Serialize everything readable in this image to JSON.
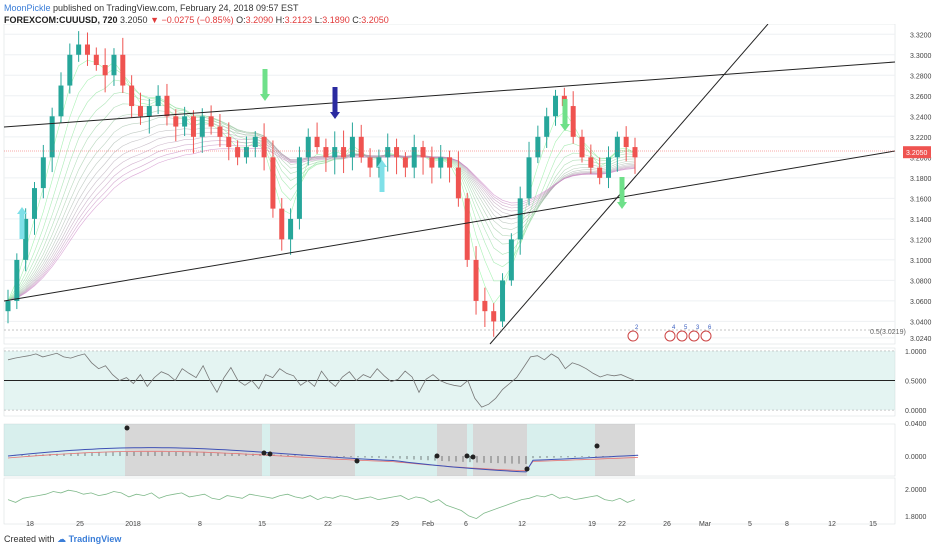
{
  "header": {
    "author": "MoonPickle",
    "published": "published on TradingView.com, February 24, 2018 09:57 EST",
    "symbol": "FOREXCOM:CUUUSD, 720",
    "last": "3.2050",
    "change": "−0.0275 (−0.85%)",
    "o_label": "O:",
    "o_val": "3.2090",
    "h_label": "H:",
    "h_val": "3.2123",
    "l_label": "L:",
    "l_val": "3.1890",
    "c_label": "C:",
    "c_val": "3.2050"
  },
  "footer": {
    "created_with": "Created with",
    "brand": "TradingView"
  },
  "colors": {
    "up": "#26a69a",
    "down": "#ef5350",
    "grid": "#eef0f3",
    "price_tag": "#ef5350",
    "band": "#b2dfdb",
    "gray_band": "#b0b0b0"
  },
  "chart_data": [
    {
      "type": "candlestick",
      "title": "",
      "price_axis_ticks": [
        "3.3200",
        "3.3000",
        "3.2800",
        "3.2600",
        "3.2400",
        "3.2200",
        "3.2000",
        "3.1800",
        "3.1600",
        "3.1400",
        "3.1200",
        "3.1000",
        "3.0800",
        "3.0600",
        "3.0400",
        "3.0240"
      ],
      "ylim": [
        3.018,
        3.33
      ],
      "current_price_label": "3.2050",
      "fib_label": "0.5(3.0219)",
      "x_axis_labels": [
        "18",
        "25",
        "2018",
        "8",
        "15",
        "22",
        "29",
        "Feb",
        "6",
        "12",
        "19",
        "22",
        "26",
        "Mar",
        "5",
        "8",
        "12",
        "15"
      ],
      "event_markers": [
        "2",
        "4",
        "5",
        "3",
        "6"
      ]
    },
    {
      "type": "line",
      "name": "oscillator",
      "ticks": [
        "1.0000",
        "0.5000",
        "0.0000"
      ],
      "ylim": [
        -0.1,
        1.05
      ],
      "values": [
        0.85,
        0.88,
        0.9,
        0.92,
        0.95,
        0.9,
        0.93,
        0.96,
        0.9,
        0.88,
        0.92,
        0.95,
        0.8,
        0.7,
        0.75,
        0.6,
        0.5,
        0.55,
        0.45,
        0.6,
        0.4,
        0.55,
        0.65,
        0.6,
        0.5,
        0.7,
        0.62,
        0.55,
        0.75,
        0.5,
        0.3,
        0.55,
        0.72,
        0.5,
        0.42,
        0.5,
        0.36,
        0.6,
        0.55,
        0.7,
        0.62,
        0.58,
        0.42,
        0.5,
        0.4,
        0.66,
        0.5,
        0.4,
        0.56,
        0.65,
        0.5,
        0.6,
        0.55,
        0.7,
        0.58,
        0.48,
        0.52,
        0.66,
        0.56,
        0.3,
        0.52,
        0.6,
        0.5,
        0.45,
        0.42,
        0.4,
        0.5,
        0.2,
        0.05,
        0.1,
        0.2,
        0.35,
        0.45,
        0.55,
        0.72,
        0.9,
        0.92,
        0.85,
        0.95,
        0.88,
        0.7,
        0.8,
        0.76,
        0.7,
        0.62,
        0.56,
        0.6,
        0.58,
        0.6,
        0.55,
        0.5
      ]
    },
    {
      "type": "line",
      "name": "macd",
      "ticks": [
        "0.0000"
      ],
      "top_tick": "0.0400"
    },
    {
      "type": "line",
      "name": "lower",
      "ticks": [
        "2.0000",
        "1.8000"
      ],
      "ylim": [
        1.74,
        2.08
      ],
      "values": [
        1.92,
        1.9,
        1.93,
        1.94,
        1.95,
        1.96,
        1.98,
        1.97,
        1.99,
        1.98,
        1.96,
        1.97,
        1.95,
        1.96,
        1.98,
        1.97,
        1.94,
        1.96,
        1.95,
        1.97,
        1.93,
        1.95,
        1.96,
        1.97,
        1.94,
        1.95,
        1.96,
        1.93,
        1.92,
        1.95,
        1.94,
        1.93,
        1.96,
        1.95,
        1.94,
        1.93,
        1.95,
        1.96,
        1.94,
        1.93,
        1.95,
        1.92,
        1.94,
        1.93,
        1.95,
        1.94,
        1.92,
        1.93,
        1.94,
        1.92,
        1.93,
        1.94,
        1.95,
        1.92,
        1.94,
        1.93,
        1.9,
        1.92,
        1.88,
        1.86,
        1.84,
        1.8,
        1.78,
        1.82,
        1.84,
        1.86,
        1.88,
        1.9,
        1.92,
        1.93,
        1.95,
        1.94,
        1.96,
        1.93,
        1.94,
        1.92,
        1.93,
        1.94,
        1.95,
        1.92,
        1.91,
        1.93,
        1.9,
        1.92
      ]
    }
  ]
}
